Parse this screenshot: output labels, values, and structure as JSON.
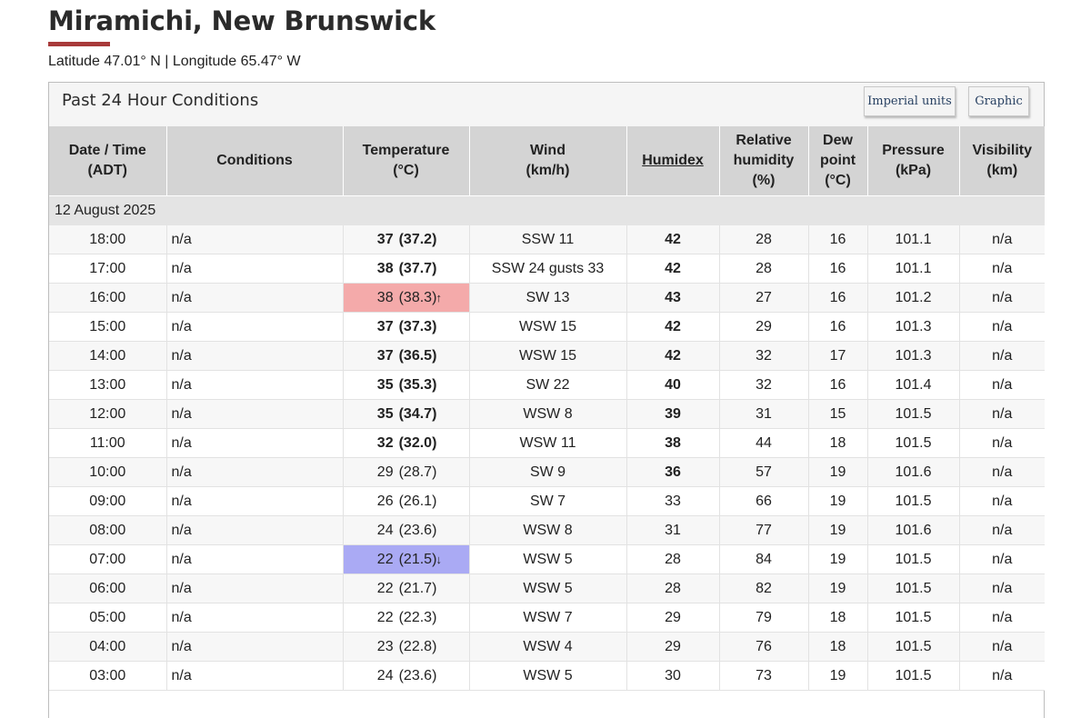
{
  "page": {
    "title": "Miramichi, New Brunswick",
    "coords": "Latitude 47.01° N | Longitude 65.47° W"
  },
  "panel": {
    "title": "Past 24 Hour Conditions",
    "imperial_label": "Imperial units",
    "graphic_label": "Graphic"
  },
  "table": {
    "headers": {
      "datetime": [
        "Date / Time",
        "(ADT)"
      ],
      "conditions": [
        "Conditions"
      ],
      "temperature": [
        "Temperature",
        "(°C)"
      ],
      "wind": [
        "Wind",
        "(km/h)"
      ],
      "humidex": [
        "Humidex"
      ],
      "humidity": [
        "Relative",
        "humidity",
        "(%)"
      ],
      "dewpoint": [
        "Dew",
        "point",
        "(°C)"
      ],
      "pressure": [
        "Pressure",
        "(kPa)"
      ],
      "visibility": [
        "Visibility",
        "(km)"
      ]
    },
    "date_label": "12 August 2025",
    "colors": {
      "high": "#f4aaaa",
      "low": "#aaaaf4",
      "header_bg": "#d4d4d4",
      "accent_rule": "#a83a3a"
    },
    "rows": [
      {
        "time": "18:00",
        "cond": "n/a",
        "temp": "37",
        "temp_precise": "(37.2)",
        "temp_bold": true,
        "wind": "SSW 11",
        "humidex": "42",
        "humidex_bold": true,
        "rh": "28",
        "dew": "16",
        "pressure": "101.1",
        "vis": "n/a",
        "mark": ""
      },
      {
        "time": "17:00",
        "cond": "n/a",
        "temp": "38",
        "temp_precise": "(37.7)",
        "temp_bold": true,
        "wind": "SSW 24 gusts 33",
        "humidex": "42",
        "humidex_bold": true,
        "rh": "28",
        "dew": "16",
        "pressure": "101.1",
        "vis": "n/a",
        "mark": ""
      },
      {
        "time": "16:00",
        "cond": "n/a",
        "temp": "38",
        "temp_precise": "(38.3)",
        "temp_bold": false,
        "wind": "SW 13",
        "humidex": "43",
        "humidex_bold": true,
        "rh": "27",
        "dew": "16",
        "pressure": "101.2",
        "vis": "n/a",
        "mark": "high",
        "arrow": "🠕"
      },
      {
        "time": "15:00",
        "cond": "n/a",
        "temp": "37",
        "temp_precise": "(37.3)",
        "temp_bold": true,
        "wind": "WSW 15",
        "humidex": "42",
        "humidex_bold": true,
        "rh": "29",
        "dew": "16",
        "pressure": "101.3",
        "vis": "n/a",
        "mark": ""
      },
      {
        "time": "14:00",
        "cond": "n/a",
        "temp": "37",
        "temp_precise": "(36.5)",
        "temp_bold": true,
        "wind": "WSW 15",
        "humidex": "42",
        "humidex_bold": true,
        "rh": "32",
        "dew": "17",
        "pressure": "101.3",
        "vis": "n/a",
        "mark": ""
      },
      {
        "time": "13:00",
        "cond": "n/a",
        "temp": "35",
        "temp_precise": "(35.3)",
        "temp_bold": true,
        "wind": "SW 22",
        "humidex": "40",
        "humidex_bold": true,
        "rh": "32",
        "dew": "16",
        "pressure": "101.4",
        "vis": "n/a",
        "mark": ""
      },
      {
        "time": "12:00",
        "cond": "n/a",
        "temp": "35",
        "temp_precise": "(34.7)",
        "temp_bold": true,
        "wind": "WSW 8",
        "humidex": "39",
        "humidex_bold": true,
        "rh": "31",
        "dew": "15",
        "pressure": "101.5",
        "vis": "n/a",
        "mark": ""
      },
      {
        "time": "11:00",
        "cond": "n/a",
        "temp": "32",
        "temp_precise": "(32.0)",
        "temp_bold": true,
        "wind": "WSW 11",
        "humidex": "38",
        "humidex_bold": true,
        "rh": "44",
        "dew": "18",
        "pressure": "101.5",
        "vis": "n/a",
        "mark": ""
      },
      {
        "time": "10:00",
        "cond": "n/a",
        "temp": "29",
        "temp_precise": "(28.7)",
        "temp_bold": false,
        "wind": "SW 9",
        "humidex": "36",
        "humidex_bold": true,
        "rh": "57",
        "dew": "19",
        "pressure": "101.6",
        "vis": "n/a",
        "mark": ""
      },
      {
        "time": "09:00",
        "cond": "n/a",
        "temp": "26",
        "temp_precise": "(26.1)",
        "temp_bold": false,
        "wind": "SW 7",
        "humidex": "33",
        "humidex_bold": false,
        "rh": "66",
        "dew": "19",
        "pressure": "101.5",
        "vis": "n/a",
        "mark": ""
      },
      {
        "time": "08:00",
        "cond": "n/a",
        "temp": "24",
        "temp_precise": "(23.6)",
        "temp_bold": false,
        "wind": "WSW 8",
        "humidex": "31",
        "humidex_bold": false,
        "rh": "77",
        "dew": "19",
        "pressure": "101.6",
        "vis": "n/a",
        "mark": ""
      },
      {
        "time": "07:00",
        "cond": "n/a",
        "temp": "22",
        "temp_precise": "(21.5)",
        "temp_bold": false,
        "wind": "WSW 5",
        "humidex": "28",
        "humidex_bold": false,
        "rh": "84",
        "dew": "19",
        "pressure": "101.5",
        "vis": "n/a",
        "mark": "low",
        "arrow": "🠗"
      },
      {
        "time": "06:00",
        "cond": "n/a",
        "temp": "22",
        "temp_precise": "(21.7)",
        "temp_bold": false,
        "wind": "WSW 5",
        "humidex": "28",
        "humidex_bold": false,
        "rh": "82",
        "dew": "19",
        "pressure": "101.5",
        "vis": "n/a",
        "mark": ""
      },
      {
        "time": "05:00",
        "cond": "n/a",
        "temp": "22",
        "temp_precise": "(22.3)",
        "temp_bold": false,
        "wind": "WSW 7",
        "humidex": "29",
        "humidex_bold": false,
        "rh": "79",
        "dew": "18",
        "pressure": "101.5",
        "vis": "n/a",
        "mark": ""
      },
      {
        "time": "04:00",
        "cond": "n/a",
        "temp": "23",
        "temp_precise": "(22.8)",
        "temp_bold": false,
        "wind": "WSW 4",
        "humidex": "29",
        "humidex_bold": false,
        "rh": "76",
        "dew": "18",
        "pressure": "101.5",
        "vis": "n/a",
        "mark": ""
      },
      {
        "time": "03:00",
        "cond": "n/a",
        "temp": "24",
        "temp_precise": "(23.6)",
        "temp_bold": false,
        "wind": "WSW 5",
        "humidex": "30",
        "humidex_bold": false,
        "rh": "73",
        "dew": "19",
        "pressure": "101.5",
        "vis": "n/a",
        "mark": ""
      }
    ]
  }
}
